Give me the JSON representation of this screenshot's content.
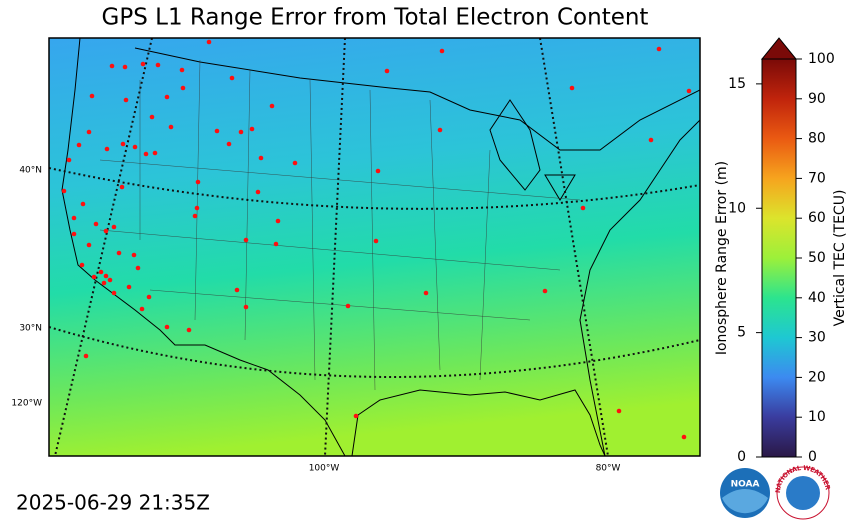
{
  "title": "GPS L1 Range Error from Total Electron Content",
  "timestamp": "2025-06-29 21:35Z",
  "map": {
    "lat_labels": [
      "40°N",
      "30°N"
    ],
    "lon_labels": [
      "120°W",
      "100°W",
      "80°W"
    ]
  },
  "colorbar": {
    "left_label": "Ionosphere Range Error (m)",
    "left_lim": [
      0,
      16
    ],
    "left_ticks": [
      0,
      5,
      10,
      15
    ],
    "right_label": "Vertical TEC (TECU)",
    "right_lim": [
      0,
      100
    ],
    "right_ticks": [
      0,
      10,
      20,
      30,
      40,
      50,
      60,
      70,
      80,
      90,
      100
    ]
  },
  "logos": {
    "noaa": "NOAA",
    "nws": "NATIONAL WEATHER SERVICE"
  }
}
